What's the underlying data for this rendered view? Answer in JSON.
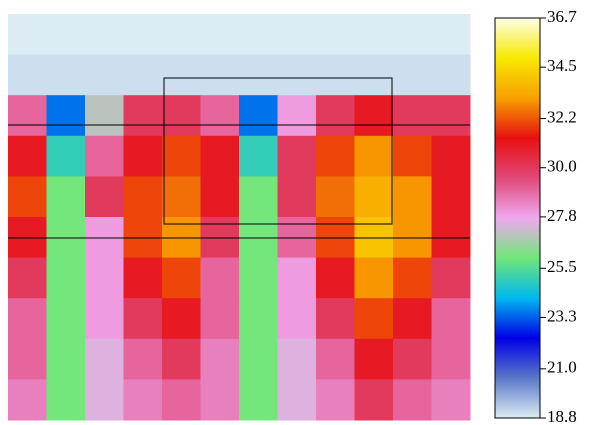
{
  "chart_data": {
    "type": "heatmap",
    "colormap": [
      "#dcecf4",
      "#5a78c8",
      "#0000e6",
      "#00b8f0",
      "#70e878",
      "#f0a8f0",
      "#e04878",
      "#e81010",
      "#f8a000",
      "#f8e800",
      "#ffffe8"
    ],
    "zlim": [
      18.8,
      36.7
    ],
    "zticks": [
      {
        "value": 18.8,
        "label": "18.8"
      },
      {
        "value": 21,
        "label": "21.0"
      },
      {
        "value": 23.3,
        "label": "23.3"
      },
      {
        "value": 25.5,
        "label": "25.5"
      },
      {
        "value": 27.8,
        "label": "27.8"
      },
      {
        "value": 30,
        "label": "30.0"
      },
      {
        "value": 32.2,
        "label": "32.2"
      },
      {
        "value": 34.5,
        "label": "34.5"
      },
      {
        "value": 36.7,
        "label": "36.7"
      }
    ],
    "z": [
      [
        18.8,
        18.8,
        18.8,
        18.8,
        18.8,
        18.8,
        18.8,
        18.8,
        18.8,
        18.8,
        18.8,
        18.8
      ],
      [
        19,
        19,
        19,
        19,
        19,
        19,
        19,
        19,
        19,
        19,
        19,
        19
      ],
      [
        29,
        23.5,
        27,
        30,
        30,
        29,
        23.5,
        28,
        30,
        31,
        30,
        30
      ],
      [
        31,
        25,
        29,
        31,
        32,
        31,
        25,
        30,
        32,
        33,
        32,
        31
      ],
      [
        32,
        26,
        30,
        32,
        32.5,
        31,
        26,
        30,
        32.5,
        33.5,
        33,
        31
      ],
      [
        31,
        26,
        28,
        32,
        33,
        30,
        26,
        29,
        32,
        34,
        33,
        31
      ],
      [
        30,
        26,
        28,
        31,
        32,
        29,
        26,
        28,
        31,
        33,
        32,
        30
      ],
      [
        29,
        26,
        28,
        30,
        31,
        29,
        26,
        28,
        30,
        32,
        31,
        29
      ],
      [
        29,
        26,
        27.5,
        29,
        30,
        28.5,
        26,
        27.5,
        29,
        31,
        30,
        29
      ],
      [
        28.5,
        26,
        27.5,
        28.5,
        29,
        28.5,
        26,
        27.5,
        28.5,
        30,
        29,
        28.5
      ]
    ]
  }
}
